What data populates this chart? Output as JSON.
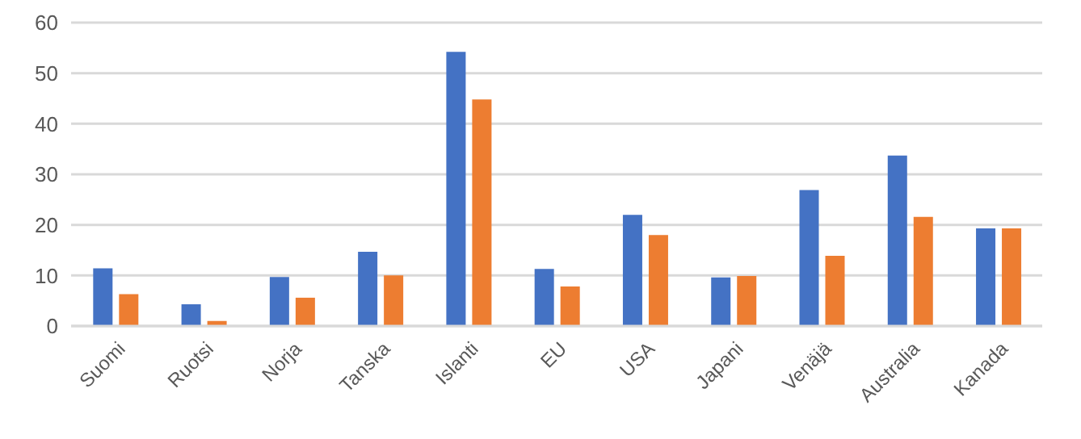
{
  "chart_data": {
    "type": "bar",
    "categories": [
      "Suomi",
      "Ruotsi",
      "Norja",
      "Tanska",
      "Islanti",
      "EU",
      "USA",
      "Japani",
      "Venäjä",
      "Australia",
      "Kanada"
    ],
    "series": [
      {
        "color": "#4472c4",
        "values": [
          11.4,
          4.3,
          9.7,
          14.7,
          54.2,
          11.3,
          22.0,
          9.6,
          26.9,
          33.7,
          19.3
        ]
      },
      {
        "color": "#ed7d31",
        "values": [
          6.3,
          1.0,
          5.6,
          10.0,
          44.8,
          7.8,
          18.0,
          9.9,
          13.9,
          21.6,
          19.3
        ]
      }
    ],
    "ylim": [
      0,
      60
    ],
    "yticks": [
      0,
      10,
      20,
      30,
      40,
      50,
      60
    ],
    "grid": "y",
    "legend": false
  }
}
